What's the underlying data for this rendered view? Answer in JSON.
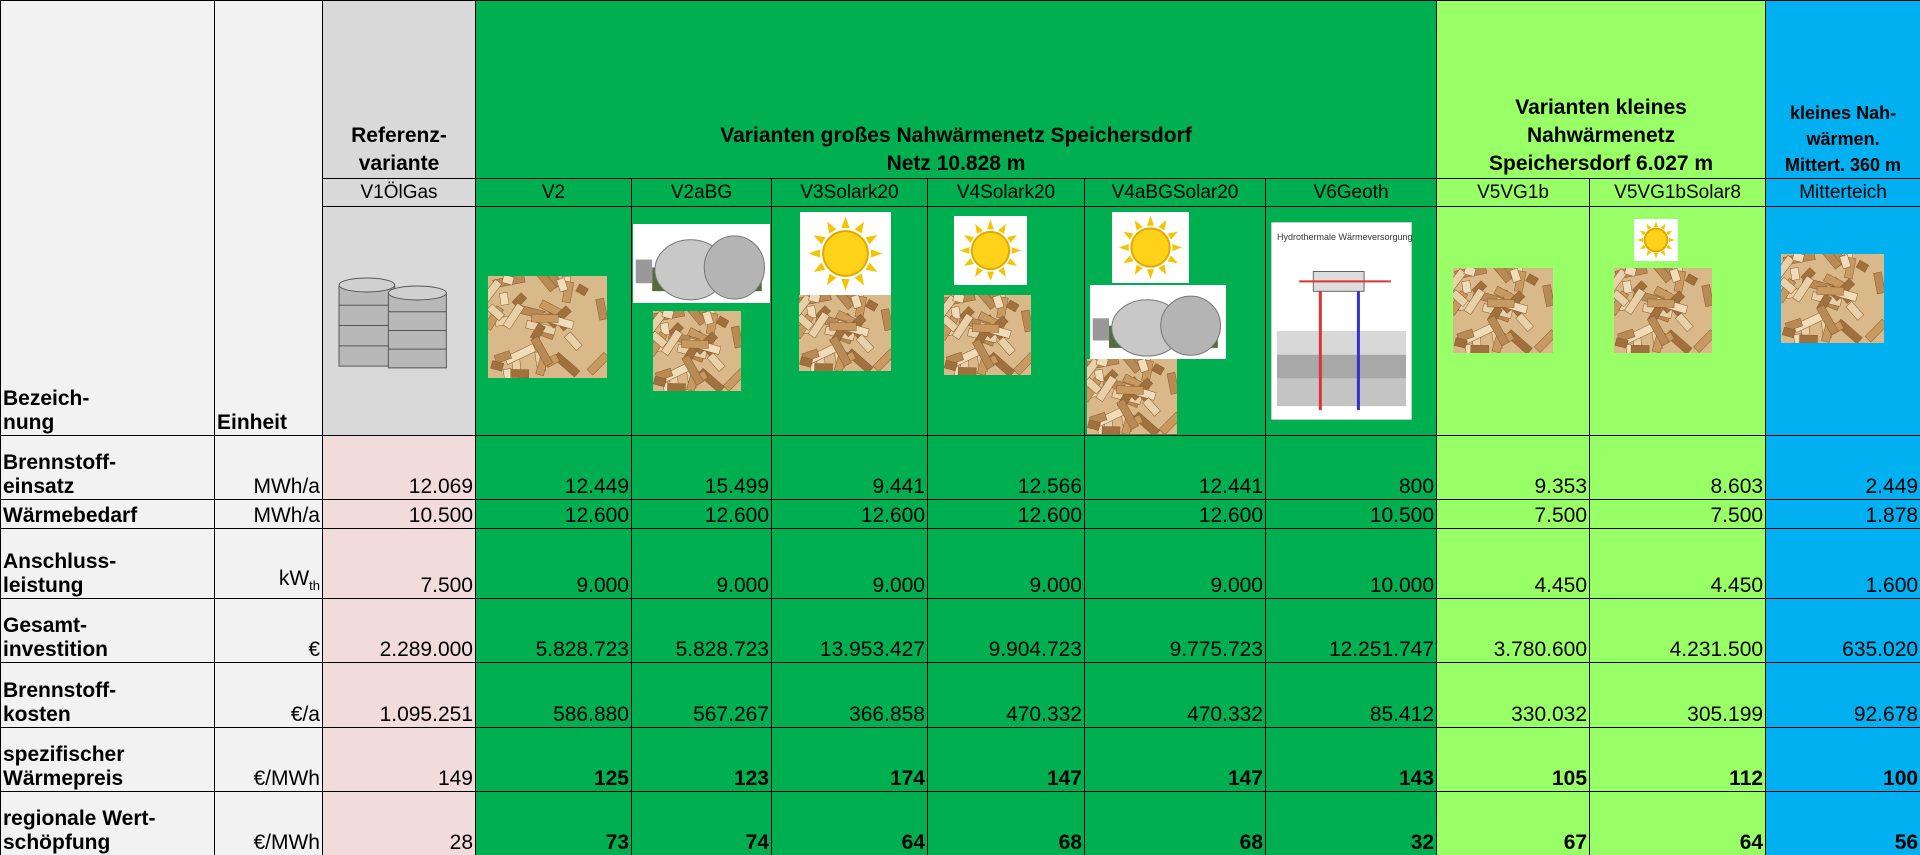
{
  "header": {
    "label_col": [
      "Bezeich-",
      "nung"
    ],
    "unit_col": "Einheit"
  },
  "groups": [
    {
      "lines": [
        "Referenz-",
        "variante"
      ],
      "span": 1,
      "color": "#d9d9d9",
      "body_color": "#f2dcdb"
    },
    {
      "lines": [
        "Varianten großes Nahwärmenetz Speichersdorf",
        "Netz 10.828 m"
      ],
      "span": 6,
      "color": "#00b050"
    },
    {
      "lines": [
        "Varianten kleines",
        "Nahwärmenetz",
        "Speichersdorf 6.027 m"
      ],
      "span": 2,
      "color": "#99ff66"
    },
    {
      "lines": [
        "kleines Nah-",
        "wärmen.",
        "Mittert. 360 m"
      ],
      "span": 1,
      "color": "#00b0f0"
    }
  ],
  "variants": [
    "V1ÖlGas",
    "V2",
    "V2aBG",
    "V3Solark20",
    "V4Solark20",
    "V4aBGSolar20",
    "V6Geoth",
    "V5VG1b",
    "V5VG1bSolar8",
    "Mitterteich"
  ],
  "geo_diagram_title": "Hydrothermale Wärmeversorgung",
  "rows": [
    {
      "label": [
        "Brennstoff-",
        "einsatz"
      ],
      "unit": "MWh/a",
      "values": [
        "12.069",
        "12.449",
        "15.499",
        "9.441",
        "12.566",
        "12.441",
        "800",
        "9.353",
        "8.603",
        "2.449"
      ]
    },
    {
      "label": [
        "Wärmebedarf"
      ],
      "unit": "MWh/a",
      "values": [
        "10.500",
        "12.600",
        "12.600",
        "12.600",
        "12.600",
        "12.600",
        "10.500",
        "7.500",
        "7.500",
        "1.878"
      ]
    },
    {
      "label": [
        "Anschluss-",
        "leistung"
      ],
      "unit": "kW",
      "unit_sub": "th",
      "values": [
        "7.500",
        "9.000",
        "9.000",
        "9.000",
        "9.000",
        "9.000",
        "10.000",
        "4.450",
        "4.450",
        "1.600"
      ]
    },
    {
      "label": [
        "Gesamt-",
        "investition"
      ],
      "unit": "€",
      "values": [
        "2.289.000",
        "5.828.723",
        "5.828.723",
        "13.953.427",
        "9.904.723",
        "9.775.723",
        "12.251.747",
        "3.780.600",
        "4.231.500",
        "635.020"
      ]
    },
    {
      "label": [
        "Brennstoff-",
        "kosten"
      ],
      "unit": "€/a",
      "values": [
        "1.095.251",
        "586.880",
        "567.267",
        "366.858",
        "470.332",
        "470.332",
        "85.412",
        "330.032",
        "305.199",
        "92.678"
      ]
    },
    {
      "label": [
        "spezifischer",
        "Wärmepreis"
      ],
      "unit": "€/MWh",
      "bold": true,
      "values": [
        "149",
        "125",
        "123",
        "174",
        "147",
        "147",
        "143",
        "105",
        "112",
        "100"
      ]
    },
    {
      "label": [
        "regionale Wert-",
        "schöpfung"
      ],
      "unit": "€/MWh",
      "bold": true,
      "values": [
        "28",
        "73",
        "74",
        "64",
        "68",
        "68",
        "32",
        "67",
        "64",
        "56"
      ]
    }
  ]
}
